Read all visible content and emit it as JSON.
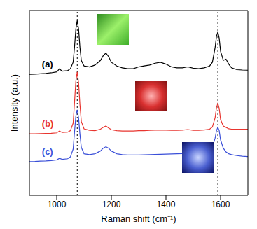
{
  "chart_data": {
    "type": "line",
    "xlabel": "Raman shift (cm⁻¹)",
    "ylabel": "Intensity (a.u.)",
    "x": [
      900,
      920,
      940,
      960,
      980,
      1000,
      1010,
      1020,
      1040,
      1050,
      1060,
      1065,
      1070,
      1075,
      1080,
      1085,
      1090,
      1100,
      1120,
      1140,
      1160,
      1170,
      1180,
      1190,
      1200,
      1220,
      1240,
      1260,
      1280,
      1300,
      1320,
      1340,
      1360,
      1380,
      1400,
      1420,
      1440,
      1460,
      1480,
      1500,
      1520,
      1540,
      1560,
      1570,
      1580,
      1585,
      1590,
      1595,
      1600,
      1610,
      1620,
      1630,
      1640,
      1660,
      1680,
      1700
    ],
    "series": [
      {
        "name": "(a)",
        "color": "#000000",
        "values": [
          65.5,
          65.6,
          65.8,
          66,
          66.3,
          66.8,
          68.4,
          67.2,
          67.5,
          68.5,
          72,
          80,
          90,
          94.7,
          90,
          80,
          73,
          70,
          69.5,
          70.5,
          73,
          75.5,
          77,
          75,
          72,
          70,
          69,
          68.5,
          68.5,
          69.5,
          70,
          70.5,
          71.5,
          72,
          71,
          69.5,
          69,
          69,
          69.5,
          68.8,
          68.5,
          69,
          70,
          72,
          80,
          86,
          88.4,
          85,
          78,
          73,
          73.7,
          71,
          69,
          68,
          67.8,
          67.7
        ]
      },
      {
        "name": "(b)",
        "color": "#e8352f",
        "values": [
          33.3,
          33.3,
          33.4,
          33.5,
          33.6,
          33.8,
          34.8,
          34,
          34.2,
          35,
          39,
          50,
          62,
          66.7,
          61,
          49,
          40,
          36,
          35.2,
          35,
          35.8,
          36.8,
          37.5,
          36.5,
          35.5,
          35,
          34.8,
          34.8,
          34.8,
          35,
          35,
          35.2,
          35.3,
          35.4,
          35.3,
          35.2,
          35.2,
          35.3,
          35.6,
          35.2,
          35.2,
          35.4,
          35.8,
          37,
          42,
          47.5,
          49.8,
          47,
          41,
          37.5,
          36.8,
          36,
          35.8,
          35.8,
          35.8,
          35.8
        ]
      },
      {
        "name": "(c)",
        "color": "#3a4fd8",
        "values": [
          18.2,
          18.3,
          18.5,
          18.6,
          18.8,
          19.2,
          20,
          19.5,
          19.8,
          20.8,
          25,
          34,
          43,
          46.3,
          42,
          33,
          26,
          22.5,
          22,
          22.5,
          24,
          25.5,
          26.3,
          25.5,
          24,
          22.5,
          22,
          21.8,
          21.8,
          21.8,
          21.9,
          22,
          22.1,
          22.2,
          22.3,
          22.4,
          22.5,
          22.6,
          22.7,
          22.8,
          23,
          23.3,
          24,
          26,
          31,
          35,
          36.8,
          35,
          30,
          25.5,
          23.5,
          22.5,
          22,
          21.5,
          21.2,
          21
        ]
      }
    ],
    "xlim": [
      900,
      1700
    ],
    "xticks": [
      1000,
      1200,
      1400,
      1600
    ],
    "ylim": [
      0,
      100
    ],
    "yticks": [],
    "tick_labels": "x",
    "vlines": [
      1075,
      1590
    ],
    "line_style": "solid"
  }
}
